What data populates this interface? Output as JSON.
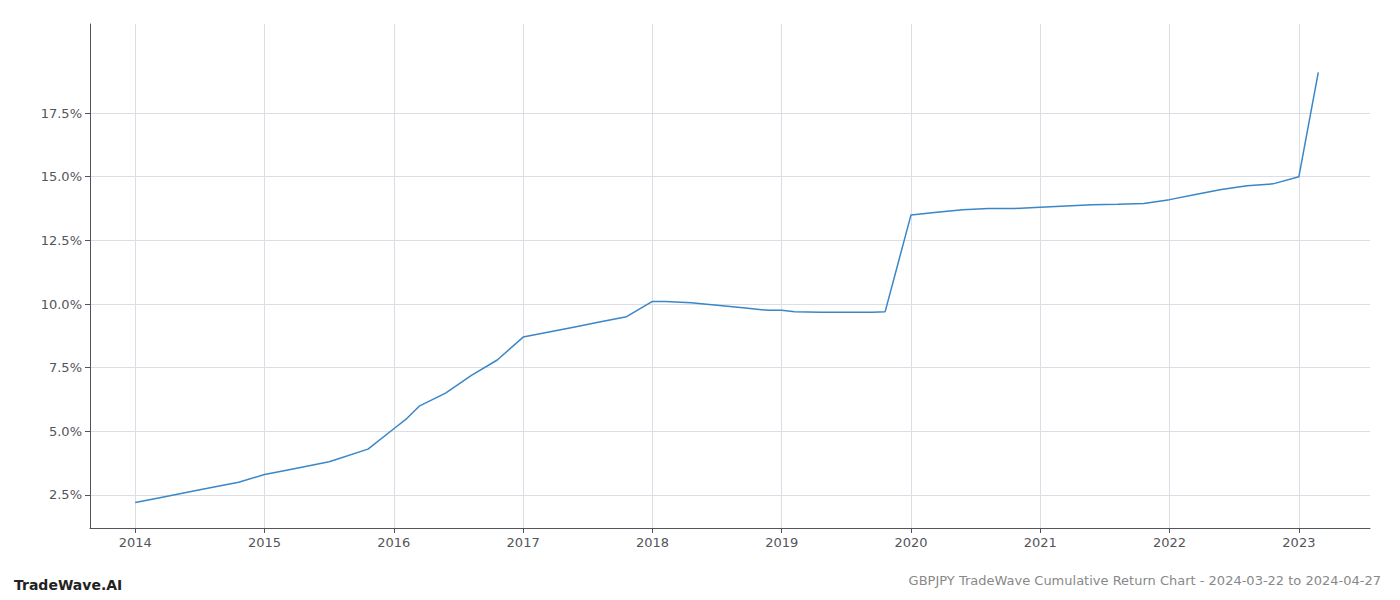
{
  "chart_data": {
    "type": "line",
    "title": "GBPJPY TradeWave Cumulative Return Chart - 2024-03-22 to 2024-04-27",
    "annotations": [
      "TradeWave.AI"
    ],
    "x": [
      2014.0,
      2014.2,
      2014.5,
      2014.8,
      2015.0,
      2015.2,
      2015.5,
      2015.8,
      2016.0,
      2016.1,
      2016.2,
      2016.4,
      2016.6,
      2016.8,
      2017.0,
      2017.2,
      2017.4,
      2017.6,
      2017.8,
      2018.0,
      2018.1,
      2018.3,
      2018.5,
      2018.7,
      2018.9,
      2019.0,
      2019.1,
      2019.3,
      2019.5,
      2019.6,
      2019.7,
      2019.8,
      2020.0,
      2020.2,
      2020.4,
      2020.6,
      2020.8,
      2021.0,
      2021.2,
      2021.4,
      2021.6,
      2021.8,
      2022.0,
      2022.2,
      2022.4,
      2022.6,
      2022.8,
      2023.0,
      2023.15
    ],
    "values": [
      2.2,
      2.4,
      2.7,
      3.0,
      3.3,
      3.5,
      3.8,
      4.3,
      5.1,
      5.5,
      6.0,
      6.5,
      7.2,
      7.8,
      8.7,
      8.9,
      9.1,
      9.3,
      9.5,
      10.1,
      10.1,
      10.05,
      9.95,
      9.85,
      9.75,
      9.75,
      9.7,
      9.68,
      9.68,
      9.68,
      9.68,
      9.7,
      13.5,
      13.6,
      13.7,
      13.75,
      13.75,
      13.8,
      13.85,
      13.9,
      13.92,
      13.95,
      14.1,
      14.3,
      14.5,
      14.65,
      14.72,
      15.0,
      19.1
    ],
    "color": "#3a86c8",
    "xlim": [
      2013.65,
      2023.55
    ],
    "xticks": [
      2014,
      2015,
      2016,
      2017,
      2018,
      2019,
      2020,
      2021,
      2022,
      2023
    ],
    "ylim": [
      1.2,
      21.0
    ],
    "yticks": [
      {
        "value": 2.5,
        "label": "2.5%"
      },
      {
        "value": 5.0,
        "label": "5.0%"
      },
      {
        "value": 7.5,
        "label": "7.5%"
      },
      {
        "value": 10.0,
        "label": "10.0%"
      },
      {
        "value": 12.5,
        "label": "12.5%"
      },
      {
        "value": 15.0,
        "label": "15.0%"
      },
      {
        "value": 17.5,
        "label": "17.5%"
      }
    ],
    "grid": true
  }
}
